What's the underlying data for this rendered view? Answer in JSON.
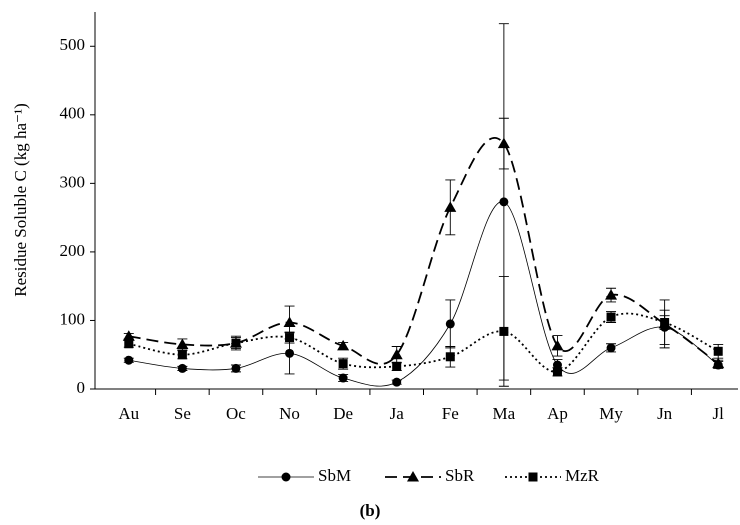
{
  "chart_data": {
    "type": "line",
    "y_label": "Residue Soluble C (kg ha⁻¹)",
    "caption": "(b)",
    "categories": [
      "Au",
      "Se",
      "Oc",
      "No",
      "De",
      "Ja",
      "Fe",
      "Ma",
      "Ap",
      "My",
      "Jn",
      "Jl"
    ],
    "series": [
      {
        "name": "SbM",
        "color": "#000000",
        "line_style": "solid",
        "marker": "circle",
        "values": [
          42,
          30,
          30,
          52,
          16,
          10,
          95,
          273,
          35,
          60,
          90,
          35
        ],
        "errors": [
          3,
          3,
          5,
          30,
          5,
          3,
          35,
          260,
          8,
          6,
          25,
          5
        ]
      },
      {
        "name": "SbR",
        "color": "#000000",
        "line_style": "dashed",
        "marker": "triangle",
        "values": [
          77,
          65,
          67,
          97,
          63,
          50,
          265,
          358,
          63,
          137,
          95,
          37
        ],
        "errors": [
          4,
          8,
          10,
          24,
          5,
          12,
          40,
          37,
          15,
          10,
          35,
          5
        ]
      },
      {
        "name": "MzR",
        "color": "#000000",
        "line_style": "dotted",
        "marker": "square",
        "values": [
          66,
          50,
          67,
          75,
          37,
          33,
          47,
          84,
          25,
          105,
          97,
          55
        ],
        "errors": [
          5,
          6,
          8,
          8,
          8,
          6,
          15,
          80,
          6,
          8,
          10,
          10
        ]
      }
    ],
    "ylim": [
      0,
      550
    ],
    "yticks": [
      0,
      100,
      200,
      300,
      400,
      500
    ],
    "grid": false
  }
}
